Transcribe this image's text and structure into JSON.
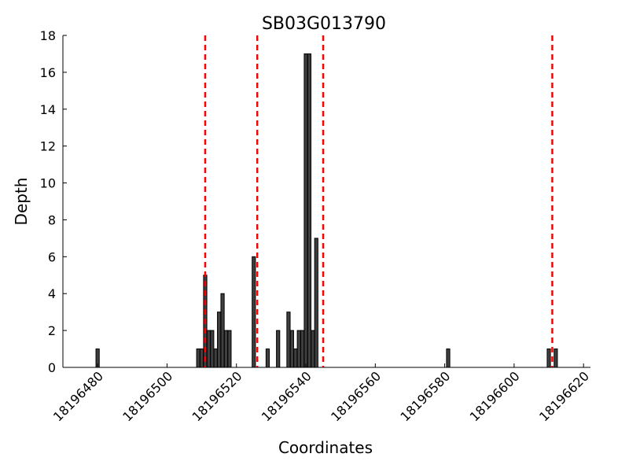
{
  "chart_data": {
    "type": "bar",
    "title": "SB03G013790",
    "xlabel": "Coordinates",
    "ylabel": "Depth",
    "xlim": [
      18196470,
      18196622
    ],
    "ylim": [
      0,
      18
    ],
    "x_ticks": [
      18196480,
      18196500,
      18196520,
      18196540,
      18196560,
      18196580,
      18196600,
      18196620
    ],
    "y_ticks": [
      0,
      2,
      4,
      6,
      8,
      10,
      12,
      14,
      16,
      18
    ],
    "grid": false,
    "bar_color": "#3f3f3f",
    "bar_edge_color": "#000000",
    "x": [
      18196480,
      18196509,
      18196510,
      18196511,
      18196512,
      18196513,
      18196514,
      18196515,
      18196516,
      18196517,
      18196518,
      18196519,
      18196525,
      18196529,
      18196532,
      18196535,
      18196536,
      18196537,
      18196538,
      18196539,
      18196540,
      18196541,
      18196542,
      18196543,
      18196544,
      18196581,
      18196610,
      18196612
    ],
    "values": [
      1,
      1,
      1,
      5,
      2,
      2,
      1,
      3,
      4,
      2,
      2,
      0,
      6,
      1,
      2,
      3,
      2,
      1,
      2,
      2,
      17,
      17,
      2,
      7,
      0,
      1,
      1,
      1
    ],
    "reference_lines": {
      "x": [
        18196511,
        18196526,
        18196545,
        18196611
      ],
      "color": "#ff0000",
      "style": "dashed"
    }
  }
}
